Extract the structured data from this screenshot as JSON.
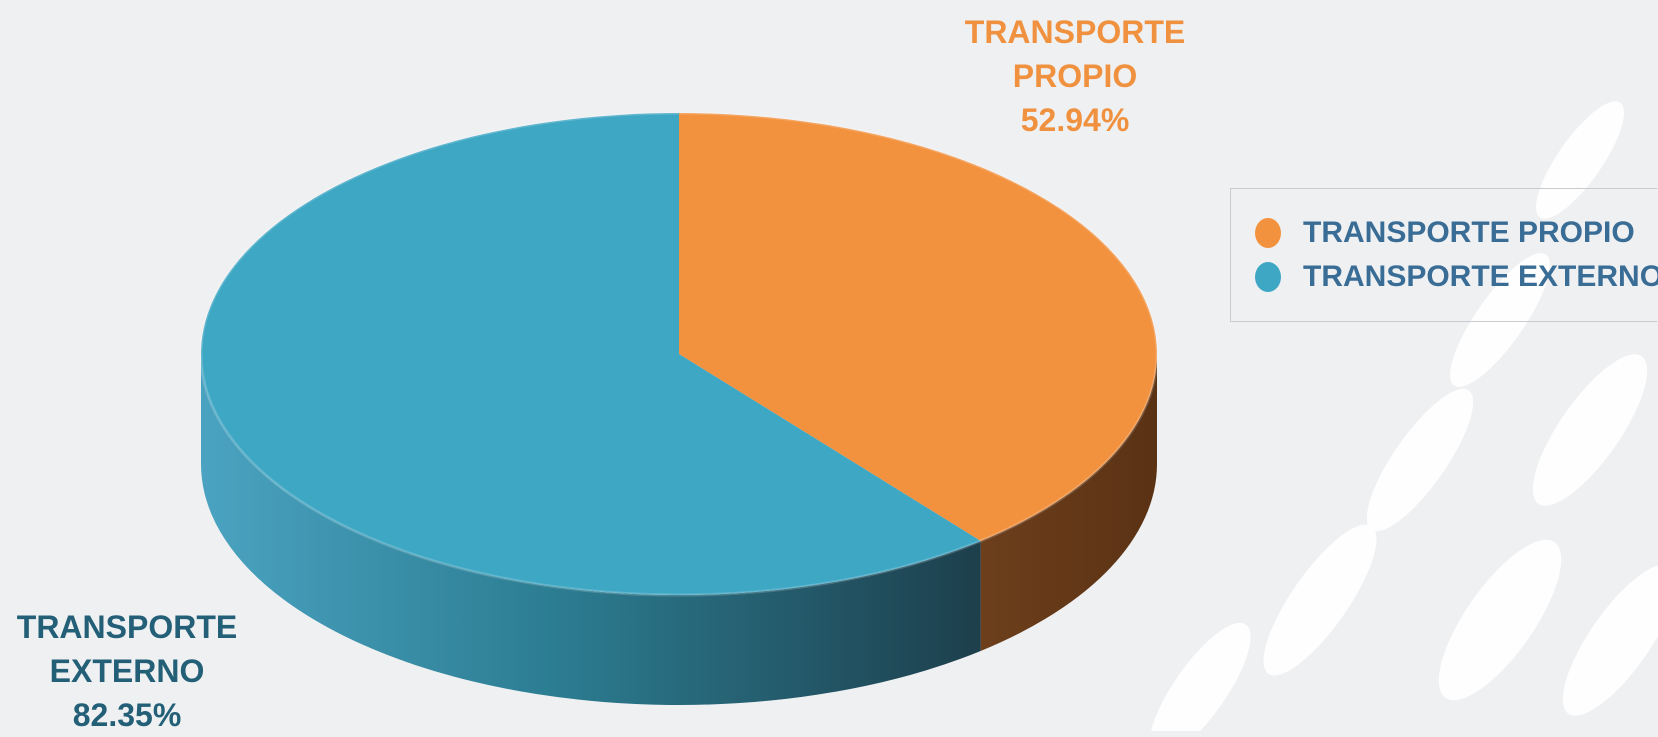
{
  "chart_data": {
    "type": "pie",
    "categories": [
      "TRANSPORTE PROPIO",
      "TRANSPORTE EXTERNO"
    ],
    "values": [
      52.94,
      82.35
    ],
    "value_labels": [
      "52.94%",
      "82.35%"
    ],
    "colors": [
      "#f2923f",
      "#3ea7c4"
    ],
    "legend": "right"
  }
}
